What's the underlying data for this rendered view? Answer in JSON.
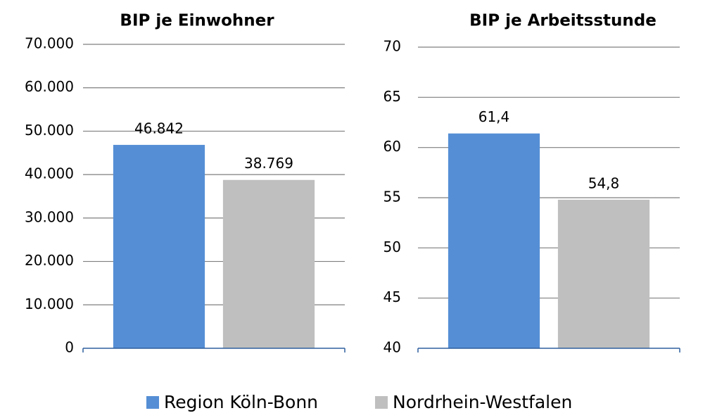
{
  "legend": {
    "series": [
      {
        "name": "Region Köln-Bonn",
        "color": "#558ed5"
      },
      {
        "name": "Nordrhein-Westfalen",
        "color": "#bfbfbf"
      }
    ]
  },
  "chart_data": [
    {
      "type": "bar",
      "title": "BIP je Einwohner",
      "values": [
        46842,
        38769
      ],
      "value_labels": [
        "46.842",
        "38.769"
      ],
      "ylim": [
        0,
        70000
      ],
      "yticks": [
        0,
        {
          "value": 10000,
          "label": "10.000"
        },
        {
          "value": 20000,
          "label": "20.000"
        },
        {
          "value": 30000,
          "label": "30.000"
        },
        {
          "value": 40000,
          "label": "40.000"
        },
        {
          "value": 50000,
          "label": "50.000"
        },
        {
          "value": 60000,
          "label": "60.000"
        },
        {
          "value": 70000,
          "label": "70.000"
        }
      ],
      "grid": true
    },
    {
      "type": "bar",
      "title": "BIP je Arbeitsstunde",
      "values": [
        61.4,
        54.8
      ],
      "value_labels": [
        "61,4",
        "54,8"
      ],
      "ylim": [
        40,
        70
      ],
      "yticks": [
        40,
        45,
        50,
        55,
        60,
        65,
        70
      ],
      "grid": true
    }
  ]
}
